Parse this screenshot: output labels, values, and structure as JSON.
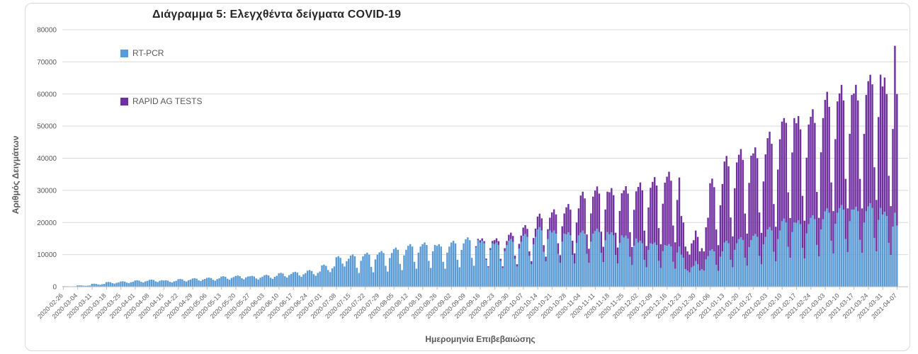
{
  "chart_data": {
    "type": "bar",
    "stacked": true,
    "title": "Διάγραμμα 5: Ελεγχθέντα δείγματα COVID-19",
    "xlabel": "Ημερομηνία Επιβεβαιώσης",
    "ylabel": "Αριθμός Δειγμάτων",
    "ylim": [
      0,
      80000
    ],
    "y_ticks": [
      0,
      10000,
      20000,
      30000,
      40000,
      50000,
      60000,
      70000,
      80000
    ],
    "grid": "horizontal",
    "legend_position": "upper-left, vertical",
    "x_unit": "day",
    "start_date": "2020-02-26",
    "end_date": "2021-04-07",
    "x_tick_interval_days": 7,
    "x_tick_labels": [
      "2020-02-26",
      "2020-03-04",
      "2020-03-11",
      "2020-03-18",
      "2020-03-25",
      "2020-04-01",
      "2020-04-08",
      "2020-04-15",
      "2020-04-22",
      "2020-04-29",
      "2020-05-06",
      "2020-05-13",
      "2020-05-20",
      "2020-05-27",
      "2020-06-03",
      "2020-06-10",
      "2020-06-17",
      "2020-06-24",
      "2020-07-01",
      "2020-07-08",
      "2020-07-15",
      "2020-07-22",
      "2020-07-29",
      "2020-08-05",
      "2020-08-12",
      "2020-08-19",
      "2020-08-26",
      "2020-09-02",
      "2020-09-09",
      "2020-09-16",
      "2020-09-23",
      "2020-09-30",
      "2020-10-07",
      "2020-10-14",
      "2020-10-21",
      "2020-10-28",
      "2020-11-04",
      "2020-11-11",
      "2020-11-18",
      "2020-11-25",
      "2020-12-02",
      "2020-12-09",
      "2020-12-16",
      "2020-12-23",
      "2020-12-30",
      "2021-01-06",
      "2021-01-13",
      "2021-01-20",
      "2021-01-27",
      "2021-02-03",
      "2021-02-10",
      "2021-02-17",
      "2021-02-24",
      "2021-03-03",
      "2021-03-10",
      "2021-03-17",
      "2021-03-24",
      "2021-03-31",
      "2021-04-07"
    ],
    "series": [
      {
        "name": "RT-PCR",
        "color": "#5B9BD5",
        "values": [
          150,
          160,
          150,
          120,
          105,
          130,
          145,
          410,
          425,
          400,
          320,
          280,
          350,
          390,
          920,
          955,
          900,
          720,
          630,
          790,
          875,
          1430,
          1485,
          1400,
          1120,
          980,
          1230,
          1360,
          1630,
          1695,
          1600,
          1280,
          1120,
          1410,
          1550,
          1940,
          2015,
          1900,
          1520,
          1330,
          1670,
          1840,
          2140,
          2225,
          2100,
          1680,
          1470,
          1850,
          2040,
          1940,
          2015,
          1900,
          1520,
          1330,
          1670,
          1840,
          2345,
          2440,
          2300,
          1840,
          1610,
          2025,
          2230,
          2550,
          2650,
          2500,
          2000,
          1750,
          2200,
          2425,
          2755,
          2860,
          2700,
          2160,
          1890,
          2375,
          2620,
          3160,
          3285,
          3100,
          2480,
          2170,
          2730,
          3010,
          3365,
          3500,
          3300,
          2640,
          2310,
          2905,
          3200,
          3265,
          3390,
          3200,
          2560,
          2240,
          2815,
          3105,
          3570,
          3710,
          3500,
          2800,
          2450,
          3080,
          3395,
          4180,
          4345,
          4100,
          3280,
          2870,
          3610,
          3975,
          4490,
          4665,
          4400,
          3520,
          3080,
          3870,
          4270,
          5000,
          5195,
          4900,
          3920,
          3430,
          4310,
          4755,
          6630,
          6890,
          6500,
          5200,
          4550,
          5720,
          6305,
          9180,
          9540,
          9000,
          7200,
          6300,
          7920,
          8730,
          9690,
          10070,
          9500,
          5890,
          4275,
          8075,
          9500,
          10200,
          10600,
          10000,
          6200,
          4500,
          8500,
          10000,
          10710,
          11130,
          10500,
          6510,
          4725,
          8925,
          10500,
          11730,
          12190,
          11500,
          7130,
          5175,
          9775,
          11500,
          12750,
          13250,
          12500,
          7750,
          5625,
          10625,
          12500,
          13260,
          13780,
          13000,
          8060,
          5850,
          11050,
          13000,
          12750,
          13250,
          12500,
          7750,
          5625,
          10625,
          12500,
          13770,
          14310,
          13500,
          8370,
          6075,
          11475,
          13500,
          14790,
          15370,
          14500,
          8990,
          6525,
          12325,
          14500,
          13770,
          14310,
          13500,
          8370,
          6075,
          11475,
          13500,
          13260,
          13780,
          13000,
          8060,
          5850,
          11050,
          13000,
          14280,
          14840,
          14000,
          8680,
          6300,
          11900,
          14000,
          15810,
          16430,
          15500,
          9610,
          6975,
          13175,
          15500,
          17850,
          18550,
          17500,
          10850,
          7875,
          14875,
          17500,
          16830,
          17490,
          16500,
          10230,
          7425,
          14025,
          16500,
          16320,
          16960,
          16000,
          9920,
          7200,
          13600,
          16000,
          16830,
          17490,
          16500,
          10230,
          7425,
          14025,
          16500,
          17340,
          18020,
          17000,
          10540,
          7650,
          14450,
          17000,
          16320,
          16960,
          16000,
          9920,
          7200,
          13600,
          16000,
          15300,
          15900,
          15000,
          9300,
          6750,
          12750,
          15000,
          13770,
          14310,
          13500,
          8370,
          6075,
          11475,
          13500,
          13260,
          13780,
          13000,
          8060,
          5850,
          11050,
          13000,
          12750,
          13250,
          12500,
          7750,
          5625,
          10625,
          12500,
          10000,
          9000,
          5500,
          5000,
          4500,
          6000,
          6500,
          8000,
          7000,
          5000,
          5500,
          5000,
          8500,
          9500,
          11220,
          11660,
          11000,
          6820,
          4950,
          9350,
          11000,
          13770,
          14310,
          13500,
          8370,
          6075,
          11475,
          13500,
          14790,
          15370,
          14500,
          8990,
          6525,
          12325,
          14500,
          15810,
          16430,
          15500,
          9610,
          6975,
          13175,
          15500,
          17850,
          18550,
          17500,
          10850,
          7875,
          14875,
          17500,
          20400,
          21200,
          20000,
          12400,
          9000,
          17000,
          20000,
          19890,
          20670,
          19500,
          12090,
          8775,
          16575,
          19500,
          21420,
          22260,
          21000,
          13020,
          9450,
          17850,
          21000,
          23460,
          24380,
          23000,
          14260,
          10350,
          19550,
          23000,
          24480,
          25440,
          24000,
          14880,
          10800,
          20400,
          24000,
          23970,
          24910,
          23500,
          14570,
          10575,
          19975,
          23500,
          24990,
          25970,
          24500,
          15190,
          11025,
          20825,
          24500,
          22440,
          23320,
          22000,
          13640,
          9900,
          18700,
          23000,
          19000
        ]
      },
      {
        "name": "RAPID AG TESTS",
        "color": "#7030A0",
        "values": [
          0,
          0,
          0,
          0,
          0,
          0,
          0,
          0,
          0,
          0,
          0,
          0,
          0,
          0,
          0,
          0,
          0,
          0,
          0,
          0,
          0,
          0,
          0,
          0,
          0,
          0,
          0,
          0,
          0,
          0,
          0,
          0,
          0,
          0,
          0,
          0,
          0,
          0,
          0,
          0,
          0,
          0,
          0,
          0,
          0,
          0,
          0,
          0,
          0,
          0,
          0,
          0,
          0,
          0,
          0,
          0,
          0,
          0,
          0,
          0,
          0,
          0,
          0,
          0,
          0,
          0,
          0,
          0,
          0,
          0,
          0,
          0,
          0,
          0,
          0,
          0,
          0,
          0,
          0,
          0,
          0,
          0,
          0,
          0,
          0,
          0,
          0,
          0,
          0,
          0,
          0,
          0,
          0,
          0,
          0,
          0,
          0,
          0,
          0,
          0,
          0,
          0,
          0,
          0,
          0,
          0,
          0,
          0,
          0,
          0,
          0,
          0,
          0,
          0,
          0,
          0,
          0,
          0,
          0,
          0,
          0,
          0,
          0,
          0,
          0,
          0,
          0,
          0,
          0,
          0,
          0,
          0,
          0,
          0,
          0,
          0,
          0,
          0,
          0,
          0,
          0,
          0,
          0,
          0,
          0,
          0,
          0,
          0,
          0,
          0,
          0,
          0,
          0,
          0,
          0,
          0,
          0,
          0,
          0,
          0,
          0,
          0,
          0,
          0,
          0,
          0,
          0,
          0,
          0,
          0,
          0,
          0,
          0,
          0,
          0,
          0,
          0,
          0,
          0,
          0,
          0,
          0,
          0,
          0,
          0,
          0,
          0,
          0,
          0,
          0,
          0,
          0,
          0,
          0,
          0,
          0,
          0,
          0,
          0,
          0,
          0,
          300,
          400,
          700,
          750,
          700,
          400,
          300,
          550,
          750,
          1250,
          1300,
          1200,
          650,
          500,
          950,
          1250,
          1900,
          2000,
          1800,
          1000,
          700,
          1450,
          1900,
          2600,
          2750,
          2500,
          1400,
          1000,
          2000,
          2600,
          4000,
          4200,
          3800,
          2100,
          1500,
          3050,
          4000,
          6300,
          6600,
          6000,
          3300,
          2400,
          4800,
          6300,
          8400,
          8800,
          8000,
          4400,
          3200,
          6400,
          8400,
          11550,
          12100,
          11000,
          6050,
          4400,
          8800,
          11550,
          12600,
          13200,
          12000,
          6600,
          4800,
          9600,
          12600,
          13100,
          13750,
          12500,
          6900,
          5000,
          10000,
          13100,
          14700,
          15400,
          14000,
          7700,
          5600,
          11200,
          14700,
          17300,
          18150,
          16500,
          9100,
          6600,
          13200,
          17300,
          19400,
          20350,
          18500,
          10200,
          7400,
          14800,
          19400,
          21500,
          22550,
          20500,
          11300,
          8200,
          16400,
          21500,
          12000,
          11000,
          7000,
          6000,
          5500,
          7500,
          8000,
          9500,
          8500,
          6000,
          6500,
          6000,
          10000,
          12000,
          21000,
          22000,
          20000,
          11000,
          8000,
          16000,
          21000,
          25200,
          26400,
          24000,
          13200,
          9600,
          19200,
          25200,
          26300,
          27500,
          25000,
          13800,
          10000,
          20000,
          26300,
          25700,
          26950,
          24500,
          13500,
          9800,
          19600,
          25700,
          28400,
          29700,
          27000,
          14900,
          10800,
          21600,
          28400,
          31000,
          31300,
          31000,
          17000,
          12400,
          24800,
          32500,
          31000,
          32450,
          29500,
          16200,
          11800,
          23600,
          31000,
          31500,
          33000,
          30000,
          16500,
          12000,
          24000,
          31500,
          34700,
          36300,
          33000,
          18200,
          13200,
          26400,
          34700,
          35700,
          37400,
          34000,
          18700,
          13600,
          27200,
          35700,
          36200,
          37950,
          34500,
          19000,
          13800,
          27600,
          36200,
          39000,
          40000,
          38500,
          22000,
          16000,
          32000,
          41500,
          39900,
          41800,
          38000,
          20900,
          15200,
          30400,
          52000,
          41000
        ]
      }
    ],
    "style": {
      "gridline_color": "#d9d9d9",
      "axis_line_color": "#bfbfbf",
      "tick_label_color": "#595959",
      "title_color": "#262626"
    }
  }
}
